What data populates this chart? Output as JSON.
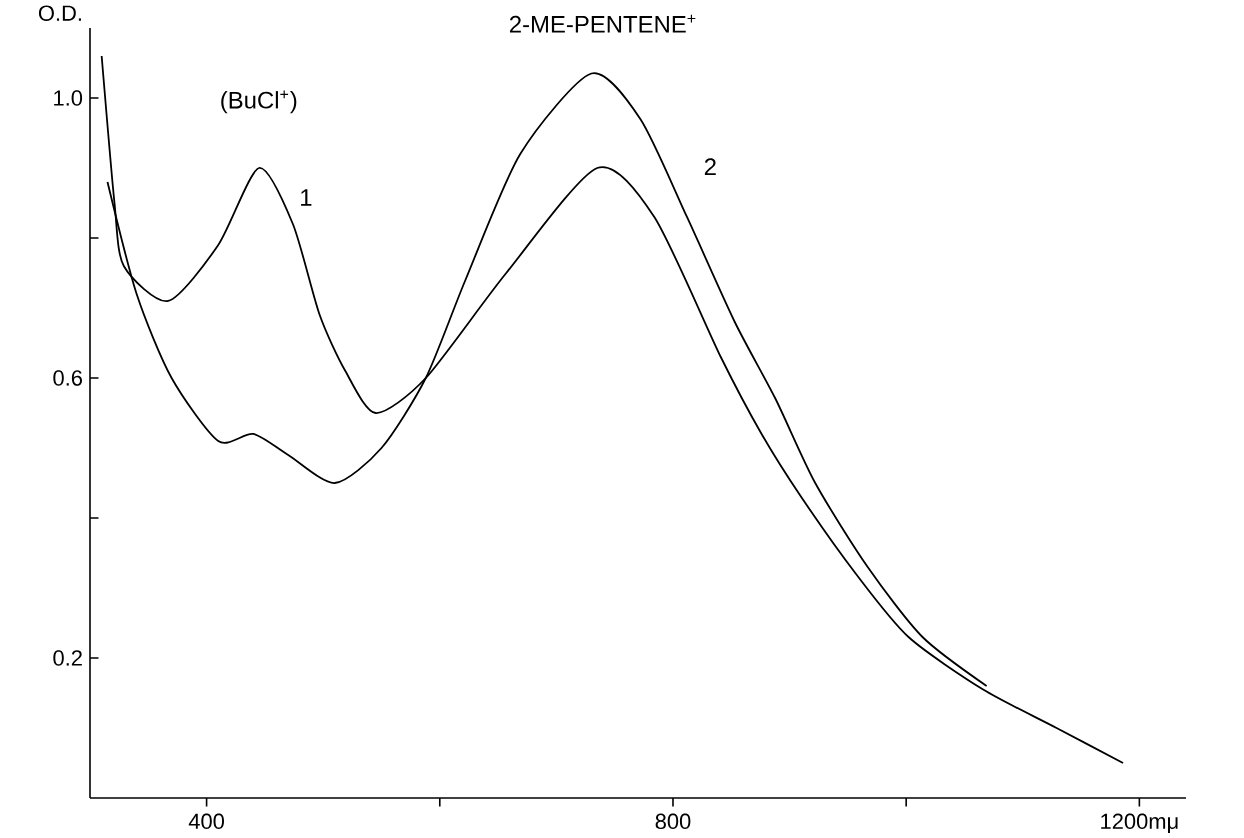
{
  "chart_data": {
    "type": "line",
    "ylabel": "O.D.",
    "xlim": [
      300,
      1240
    ],
    "ylim": [
      0,
      1.1
    ],
    "xticks": [
      400,
      {
        "value": 600,
        "label": null
      },
      800,
      {
        "value": 1000,
        "label": null
      },
      {
        "value": 1200,
        "label": "1200mμ"
      }
    ],
    "yticks": [
      0.2,
      {
        "value": 0.4,
        "label": null
      },
      0.6,
      {
        "value": 0.8,
        "label": null
      },
      {
        "value": 1.0,
        "label": "1.0"
      }
    ],
    "series": [
      {
        "color": "#000000",
        "x": [
          310,
          321,
          329,
          367,
          410,
          445,
          474,
          497,
          519,
          545,
          588,
          657,
          735,
          784,
          841,
          876,
          910,
          957,
          1002,
          1066,
          1129,
          1186
        ],
        "values": [
          1.06,
          0.85,
          0.76,
          0.71,
          0.79,
          0.9,
          0.82,
          0.69,
          0.61,
          0.55,
          0.6,
          0.75,
          0.9,
          0.83,
          0.63,
          0.52,
          0.43,
          0.32,
          0.23,
          0.155,
          0.1,
          0.05
        ]
      },
      {
        "color": "#000000",
        "x": [
          315,
          340,
          370,
          410,
          440,
          470,
          510,
          550,
          588,
          622,
          669,
          730,
          772,
          812,
          853,
          888,
          922,
          967,
          1014,
          1069
        ],
        "values": [
          0.88,
          0.72,
          0.6,
          0.51,
          0.52,
          0.49,
          0.45,
          0.5,
          0.6,
          0.74,
          0.92,
          1.035,
          0.97,
          0.83,
          0.68,
          0.57,
          0.45,
          0.33,
          0.23,
          0.16
        ]
      }
    ],
    "annotations": [
      "(BuCl$^{+}$)",
      "1",
      "2-ME-PENTENE$^{+}$",
      "2"
    ]
  }
}
